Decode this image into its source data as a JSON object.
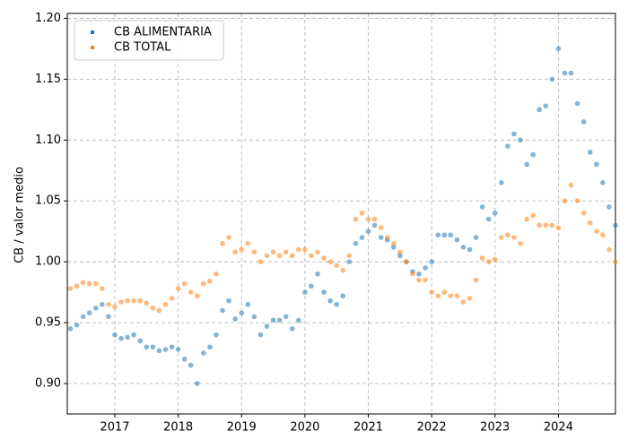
{
  "chart_data": {
    "type": "scatter",
    "ylabel": "CB / valor medio",
    "x": [
      2016.3,
      2016.4,
      2016.5,
      2016.6,
      2016.7,
      2016.8,
      2016.9,
      2017.0,
      2017.1,
      2017.2,
      2017.3,
      2017.4,
      2017.5,
      2017.6,
      2017.7,
      2017.8,
      2017.9,
      2018.0,
      2018.1,
      2018.2,
      2018.3,
      2018.4,
      2018.5,
      2018.6,
      2018.7,
      2018.8,
      2018.9,
      2019.0,
      2019.1,
      2019.2,
      2019.3,
      2019.4,
      2019.5,
      2019.6,
      2019.7,
      2019.8,
      2019.9,
      2020.0,
      2020.1,
      2020.2,
      2020.3,
      2020.4,
      2020.5,
      2020.6,
      2020.7,
      2020.8,
      2020.9,
      2021.0,
      2021.1,
      2021.2,
      2021.3,
      2021.4,
      2021.5,
      2021.6,
      2021.7,
      2021.8,
      2021.9,
      2022.0,
      2022.1,
      2022.2,
      2022.3,
      2022.4,
      2022.5,
      2022.6,
      2022.7,
      2022.8,
      2022.9,
      2023.0,
      2023.1,
      2023.2,
      2023.3,
      2023.4,
      2023.5,
      2023.6,
      2023.7,
      2023.8,
      2023.9,
      2024.0,
      2024.1,
      2024.2,
      2024.3,
      2024.4,
      2024.5,
      2024.6,
      2024.7,
      2024.8,
      2024.9
    ],
    "series": [
      {
        "name": "CB ALIMENTARIA",
        "color": "#1f77b4",
        "values": [
          0.945,
          0.948,
          0.955,
          0.958,
          0.962,
          0.965,
          0.955,
          0.94,
          0.937,
          0.938,
          0.94,
          0.935,
          0.93,
          0.93,
          0.927,
          0.928,
          0.93,
          0.928,
          0.92,
          0.915,
          0.9,
          0.925,
          0.93,
          0.94,
          0.96,
          0.968,
          0.953,
          0.958,
          0.965,
          0.955,
          0.94,
          0.947,
          0.952,
          0.952,
          0.955,
          0.945,
          0.952,
          0.975,
          0.98,
          0.99,
          0.975,
          0.968,
          0.965,
          0.972,
          1.0,
          1.015,
          1.02,
          1.025,
          1.03,
          1.02,
          1.018,
          1.012,
          1.005,
          1.0,
          0.992,
          0.99,
          0.995,
          1.0,
          1.022,
          1.022,
          1.022,
          1.018,
          1.012,
          1.01,
          1.02,
          1.045,
          1.035,
          1.04,
          1.065,
          1.095,
          1.105,
          1.1,
          1.08,
          1.088,
          1.125,
          1.128,
          1.15,
          1.175,
          1.155,
          1.155,
          1.13,
          1.115,
          1.09,
          1.08,
          1.065,
          1.045,
          1.03
        ]
      },
      {
        "name": "CB TOTAL",
        "color": "#ff7f0e",
        "values": [
          0.978,
          0.98,
          0.983,
          0.982,
          0.982,
          0.978,
          0.965,
          0.963,
          0.967,
          0.968,
          0.968,
          0.968,
          0.966,
          0.962,
          0.96,
          0.965,
          0.97,
          0.978,
          0.982,
          0.975,
          0.972,
          0.982,
          0.984,
          0.99,
          1.015,
          1.02,
          1.008,
          1.01,
          1.015,
          1.008,
          1.0,
          1.005,
          1.008,
          1.005,
          1.008,
          1.005,
          1.01,
          1.01,
          1.005,
          1.008,
          1.003,
          1.0,
          0.997,
          0.993,
          1.005,
          1.035,
          1.04,
          1.035,
          1.035,
          1.028,
          1.02,
          1.015,
          1.008,
          1.0,
          0.99,
          0.985,
          0.985,
          0.975,
          0.972,
          0.975,
          0.972,
          0.972,
          0.967,
          0.97,
          0.985,
          1.003,
          1.0,
          1.002,
          1.02,
          1.022,
          1.02,
          1.015,
          1.035,
          1.038,
          1.03,
          1.03,
          1.03,
          1.028,
          1.05,
          1.063,
          1.05,
          1.04,
          1.032,
          1.025,
          1.022,
          1.01,
          1.0
        ]
      }
    ],
    "xlim": [
      2016.25,
      2024.9
    ],
    "ylim": [
      0.875,
      1.204
    ],
    "xticks": [
      2017,
      2018,
      2019,
      2020,
      2021,
      2022,
      2023,
      2024
    ],
    "yticks": [
      {
        "value": 0.9,
        "label": "0.90"
      },
      0.95,
      {
        "value": 1.0,
        "label": "1.00"
      },
      1.05,
      {
        "value": 1.1,
        "label": "1.10"
      },
      1.15,
      {
        "value": 1.2,
        "label": "1.20"
      }
    ],
    "grid": true,
    "legend": "upper left"
  }
}
